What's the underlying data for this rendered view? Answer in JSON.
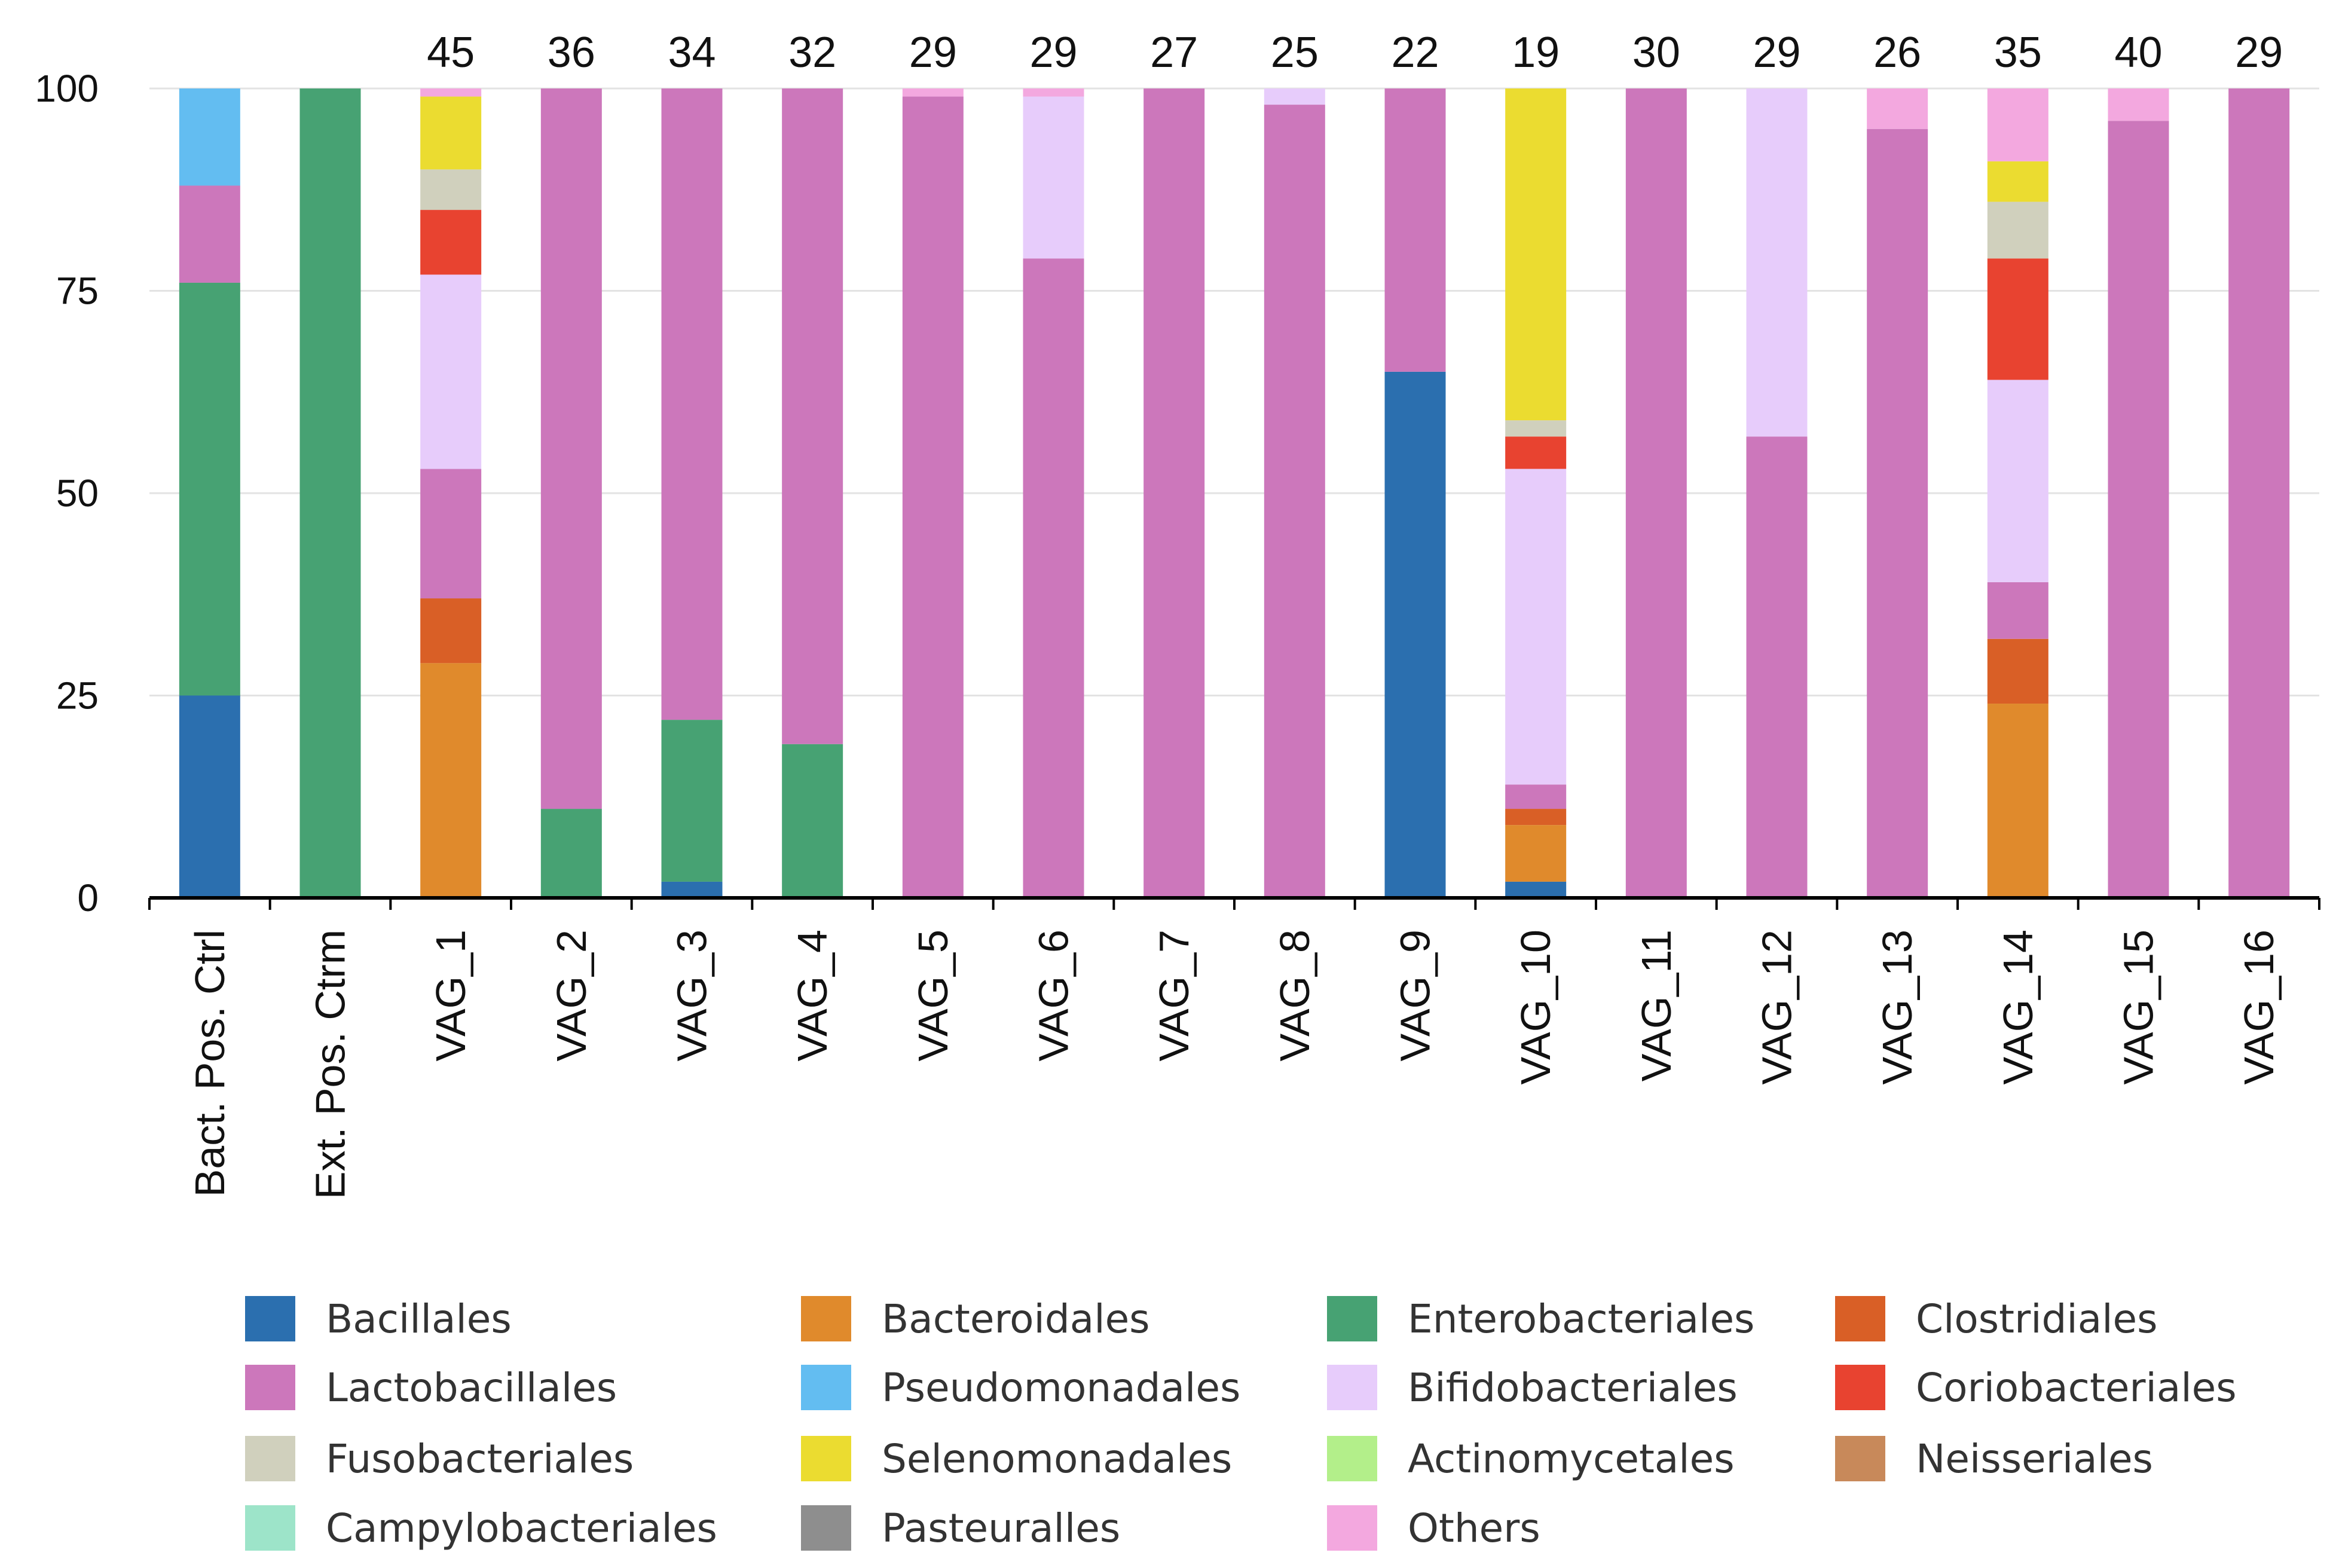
{
  "chart_data": {
    "type": "bar",
    "stacked": true,
    "title": "",
    "xlabel": "",
    "ylabel": "",
    "ylim": [
      0,
      100
    ],
    "yticks": [
      0,
      25,
      50,
      75,
      100
    ],
    "grid": true,
    "legend_position": "bottom",
    "categories": [
      "Bact. Pos. Ctrl",
      "Ext. Pos. Ctrm",
      "VAG_1",
      "VAG_2",
      "VAG_3",
      "VAG_4",
      "VAG_5",
      "VAG_6",
      "VAG_7",
      "VAG_8",
      "VAG_9",
      "VAG_10",
      "VAG_11",
      "VAG_12",
      "VAG_13",
      "VAG_14",
      "VAG_15",
      "VAG_16"
    ],
    "top_labels": [
      "",
      "",
      "45",
      "36",
      "34",
      "32",
      "29",
      "29",
      "27",
      "25",
      "22",
      "19",
      "30",
      "29",
      "26",
      "35",
      "40",
      "29"
    ],
    "series": [
      {
        "name": "Bacillales",
        "color": "#2b6faf",
        "values": [
          25,
          0,
          0,
          0,
          2,
          0,
          0,
          0,
          0,
          0,
          65,
          2,
          0,
          0,
          0,
          0,
          0,
          0
        ]
      },
      {
        "name": "Bacteroidales",
        "color": "#e08a2c",
        "values": [
          0,
          0,
          29,
          0,
          0,
          0,
          0,
          0,
          0,
          0,
          0,
          7,
          0,
          0,
          0,
          24,
          0,
          0
        ]
      },
      {
        "name": "Enterobacteriales",
        "color": "#47a273",
        "values": [
          51,
          100,
          0,
          11,
          20,
          19,
          0,
          0,
          0,
          0,
          0,
          0,
          0,
          0,
          0,
          0,
          0,
          0
        ]
      },
      {
        "name": "Clostridiales",
        "color": "#d95f26",
        "values": [
          0,
          0,
          8,
          0,
          0,
          0,
          0,
          0,
          0,
          0,
          0,
          2,
          0,
          0,
          0,
          8,
          0,
          0
        ]
      },
      {
        "name": "Lactobacillales",
        "color": "#cc77bb",
        "values": [
          12,
          0,
          16,
          89,
          78,
          81,
          99,
          79,
          100,
          98,
          35,
          3,
          100,
          57,
          95,
          7,
          96,
          100
        ]
      },
      {
        "name": "Pseudomonadales",
        "color": "#63bdf1",
        "values": [
          12,
          0,
          0,
          0,
          0,
          0,
          0,
          0,
          0,
          0,
          0,
          0,
          0,
          0,
          0,
          0,
          0,
          0
        ]
      },
      {
        "name": "Bifidobacteriales",
        "color": "#e7ccfb",
        "values": [
          0,
          0,
          24,
          0,
          0,
          0,
          0,
          20,
          0,
          2,
          0,
          39,
          0,
          43,
          0,
          25,
          0,
          0
        ]
      },
      {
        "name": "Coriobacteriales",
        "color": "#e84330",
        "values": [
          0,
          0,
          8,
          0,
          0,
          0,
          0,
          0,
          0,
          0,
          0,
          4,
          0,
          0,
          0,
          15,
          0,
          0
        ]
      },
      {
        "name": "Fusobacteriales",
        "color": "#d0d0bd",
        "values": [
          0,
          0,
          5,
          0,
          0,
          0,
          0,
          0,
          0,
          0,
          0,
          2,
          0,
          0,
          0,
          7,
          0,
          0
        ]
      },
      {
        "name": "Selenomonadales",
        "color": "#ebdc30",
        "values": [
          0,
          0,
          9,
          0,
          0,
          0,
          0,
          0,
          0,
          0,
          0,
          41,
          0,
          0,
          0,
          5,
          0,
          0
        ]
      },
      {
        "name": "Actinomycetales",
        "color": "#b3ef8a",
        "values": [
          0,
          0,
          0,
          0,
          0,
          0,
          0,
          0,
          0,
          0,
          0,
          0,
          0,
          0,
          0,
          0,
          0,
          0
        ]
      },
      {
        "name": "Neisseriales",
        "color": "#c8895a",
        "values": [
          0,
          0,
          0,
          0,
          0,
          0,
          0,
          0,
          0,
          0,
          0,
          0,
          0,
          0,
          0,
          0,
          0,
          0
        ]
      },
      {
        "name": "Campylobacteriales",
        "color": "#9de4c9",
        "values": [
          0,
          0,
          0,
          0,
          0,
          0,
          0,
          0,
          0,
          0,
          0,
          0,
          0,
          0,
          0,
          0,
          0,
          0
        ]
      },
      {
        "name": "Pasteuralles",
        "color": "#8e8e8e",
        "values": [
          0,
          0,
          0,
          0,
          0,
          0,
          0,
          0,
          0,
          0,
          0,
          0,
          0,
          0,
          0,
          0,
          0,
          0
        ]
      },
      {
        "name": "Others",
        "color": "#f3a8df",
        "values": [
          0,
          0,
          1,
          0,
          0,
          0,
          1,
          1,
          0,
          0,
          0,
          0,
          0,
          0,
          5,
          9,
          4,
          0
        ]
      }
    ],
    "legend_order": [
      "Bacillales",
      "Bacteroidales",
      "Enterobacteriales",
      "Clostridiales",
      "Lactobacillales",
      "Pseudomonadales",
      "Bifidobacteriales",
      "Coriobacteriales",
      "Fusobacteriales",
      "Selenomonadales",
      "Actinomycetales",
      "Neisseriales",
      "Campylobacteriales",
      "Pasteuralles",
      "Others"
    ]
  }
}
